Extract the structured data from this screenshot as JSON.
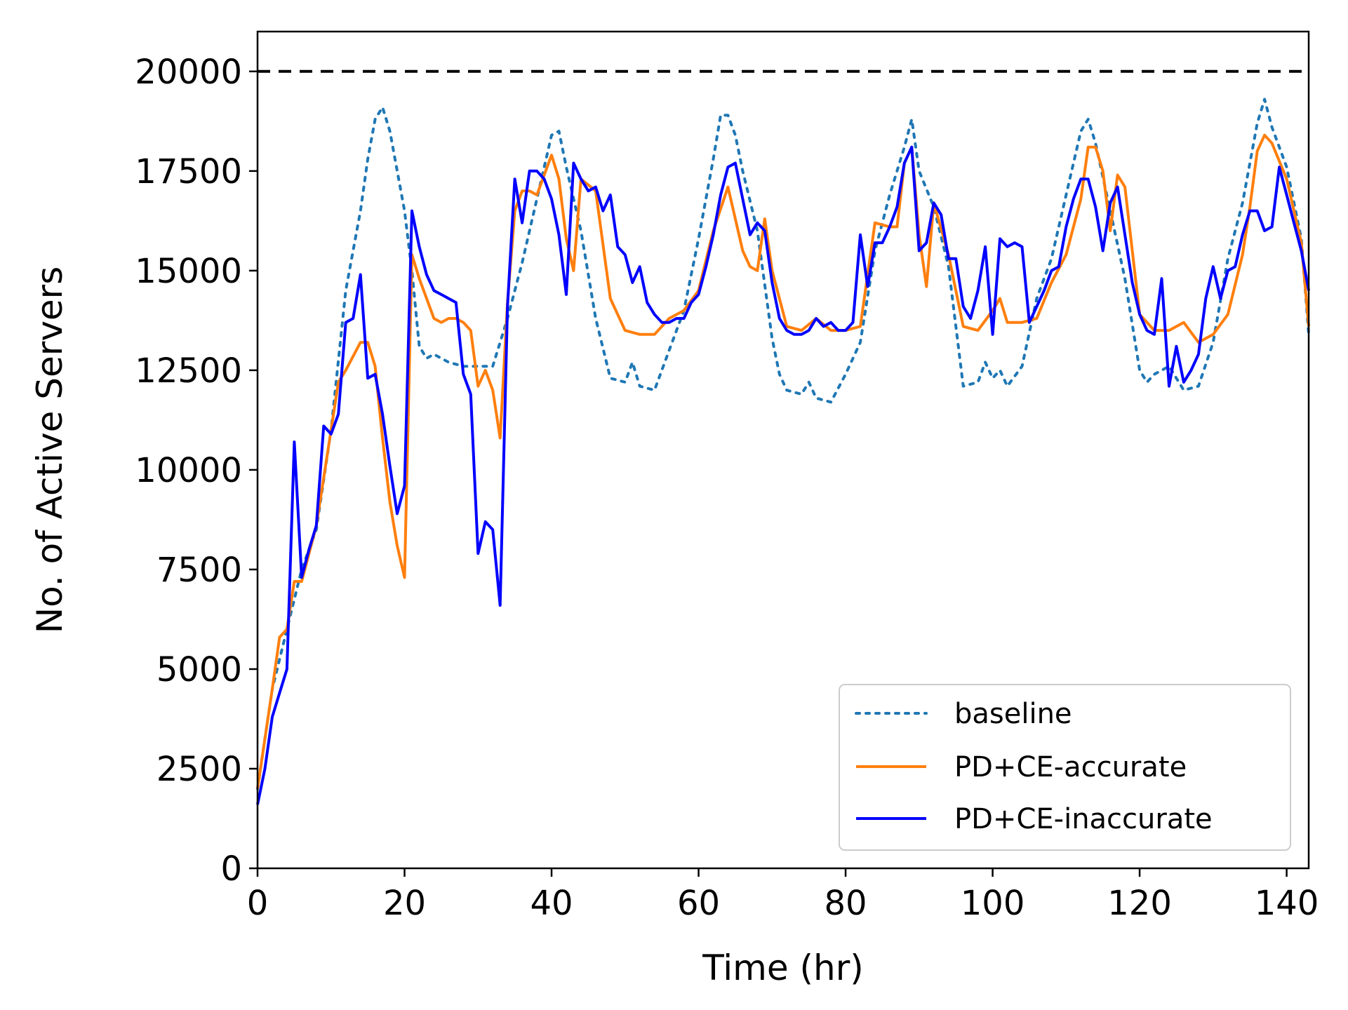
{
  "chart_data": {
    "type": "line",
    "title": "",
    "xlabel": "Time (hr)",
    "ylabel": "No. of Active Servers",
    "xlim": [
      0,
      143
    ],
    "ylim": [
      0,
      21000
    ],
    "xticks": [
      0,
      20,
      40,
      60,
      80,
      100,
      120,
      140
    ],
    "yticks": [
      0,
      2500,
      5000,
      7500,
      10000,
      12500,
      15000,
      17500,
      20000
    ],
    "grid": false,
    "legend_position": "lower-right",
    "reference_line": {
      "y": 20000,
      "style": "dashed",
      "color": "#000000"
    },
    "colors": {
      "baseline": "#1f77b4",
      "accurate": "#ff7f0e",
      "inaccurate": "#0000ff"
    },
    "series": [
      {
        "name": "baseline",
        "style": "dotted",
        "color": "#1f77b4",
        "x": [
          0,
          2,
          4,
          6,
          8,
          10,
          12,
          14,
          15,
          16,
          17,
          18,
          20,
          21,
          22,
          23,
          24,
          26,
          28,
          30,
          32,
          34,
          36,
          38,
          40,
          41,
          42,
          44,
          46,
          48,
          50,
          51,
          52,
          54,
          56,
          58,
          60,
          62,
          63,
          64,
          65,
          66,
          68,
          70,
          71,
          72,
          74,
          75,
          76,
          78,
          80,
          82,
          84,
          86,
          88,
          89,
          90,
          92,
          94,
          96,
          98,
          99,
          100,
          101,
          102,
          104,
          106,
          108,
          110,
          112,
          113,
          114,
          116,
          118,
          120,
          121,
          122,
          124,
          126,
          128,
          130,
          132,
          134,
          136,
          137,
          138,
          140,
          142,
          143
        ],
        "y": [
          2000,
          4500,
          6000,
          7500,
          8500,
          11000,
          14500,
          16500,
          17800,
          18800,
          19100,
          18500,
          16500,
          15000,
          13100,
          12800,
          12900,
          12700,
          12600,
          12600,
          12600,
          13800,
          15200,
          16800,
          18400,
          18500,
          17600,
          16000,
          13800,
          12300,
          12200,
          12700,
          12100,
          12000,
          13000,
          14000,
          15800,
          17800,
          18900,
          18900,
          18400,
          17500,
          16000,
          13300,
          12400,
          12000,
          11900,
          12200,
          11800,
          11700,
          12400,
          13200,
          15500,
          16900,
          18100,
          18800,
          17500,
          16600,
          15100,
          12100,
          12200,
          12700,
          12300,
          12500,
          12100,
          12600,
          14300,
          15300,
          16900,
          18500,
          18800,
          18200,
          16500,
          14800,
          12500,
          12200,
          12400,
          12600,
          12000,
          12100,
          13200,
          15300,
          16700,
          18700,
          19300,
          18600,
          17600,
          15800,
          13400
        ]
      },
      {
        "name": "PD+CE-accurate",
        "style": "solid",
        "color": "#ff7f0e",
        "x": [
          0,
          2,
          3,
          4,
          5,
          6,
          8,
          10,
          11,
          12,
          14,
          15,
          16,
          17,
          18,
          19,
          20,
          21,
          22,
          24,
          25,
          26,
          27,
          28,
          29,
          30,
          31,
          32,
          33,
          34,
          35,
          36,
          37,
          38,
          40,
          41,
          42,
          43,
          44,
          46,
          48,
          50,
          52,
          54,
          56,
          58,
          60,
          62,
          64,
          66,
          67,
          68,
          69,
          70,
          72,
          74,
          76,
          78,
          80,
          82,
          84,
          86,
          87,
          88,
          89,
          90,
          91,
          92,
          94,
          96,
          98,
          100,
          101,
          102,
          104,
          106,
          108,
          110,
          112,
          113,
          114,
          115,
          116,
          117,
          118,
          120,
          122,
          124,
          126,
          128,
          130,
          132,
          134,
          135,
          136,
          137,
          138,
          140,
          142,
          143
        ],
        "y": [
          2000,
          4500,
          5800,
          6000,
          7200,
          7200,
          8600,
          11000,
          12200,
          12500,
          13200,
          13200,
          12600,
          10800,
          9200,
          8100,
          7300,
          15400,
          14800,
          13800,
          13700,
          13800,
          13800,
          13700,
          13500,
          12100,
          12500,
          12000,
          10800,
          14200,
          16500,
          17000,
          17000,
          16900,
          17900,
          17300,
          15800,
          15000,
          17300,
          17000,
          14300,
          13500,
          13400,
          13400,
          13800,
          14000,
          14500,
          16000,
          17100,
          15500,
          15100,
          15000,
          16300,
          15000,
          13600,
          13500,
          13800,
          13500,
          13500,
          13600,
          16200,
          16100,
          16100,
          17700,
          18100,
          15900,
          14600,
          16700,
          15400,
          13600,
          13500,
          14000,
          14300,
          13700,
          13700,
          13800,
          14700,
          15400,
          16800,
          18100,
          18100,
          17500,
          16000,
          17400,
          17100,
          13900,
          13500,
          13500,
          13700,
          13200,
          13400,
          13900,
          15400,
          16600,
          18000,
          18400,
          18200,
          17300,
          15700,
          13600
        ]
      },
      {
        "name": "PD+CE-inaccurate",
        "style": "solid",
        "color": "#0000ff",
        "x": [
          0,
          1,
          2,
          3,
          4,
          5,
          6,
          7,
          8,
          9,
          10,
          11,
          12,
          13,
          14,
          15,
          16,
          17,
          18,
          19,
          20,
          21,
          22,
          23,
          24,
          25,
          26,
          27,
          28,
          29,
          30,
          31,
          32,
          33,
          34,
          35,
          36,
          37,
          38,
          39,
          40,
          41,
          42,
          43,
          44,
          45,
          46,
          47,
          48,
          49,
          50,
          51,
          52,
          53,
          54,
          55,
          56,
          57,
          58,
          59,
          60,
          61,
          62,
          63,
          64,
          65,
          66,
          67,
          68,
          69,
          70,
          71,
          72,
          73,
          74,
          75,
          76,
          77,
          78,
          79,
          80,
          81,
          82,
          83,
          84,
          85,
          86,
          87,
          88,
          89,
          90,
          91,
          92,
          93,
          94,
          95,
          96,
          97,
          98,
          99,
          100,
          101,
          102,
          103,
          104,
          105,
          106,
          107,
          108,
          109,
          110,
          111,
          112,
          113,
          114,
          115,
          116,
          117,
          118,
          119,
          120,
          121,
          122,
          123,
          124,
          125,
          126,
          127,
          128,
          129,
          130,
          131,
          132,
          133,
          134,
          135,
          136,
          137,
          138,
          139,
          140,
          141,
          142,
          143
        ],
        "y": [
          1600,
          2500,
          3800,
          4400,
          5000,
          10700,
          7300,
          8000,
          8600,
          11100,
          10900,
          11400,
          13700,
          13800,
          14900,
          12300,
          12400,
          11400,
          10100,
          8900,
          9600,
          16500,
          15600,
          14900,
          14500,
          14400,
          14300,
          14200,
          12400,
          11900,
          7900,
          8700,
          8500,
          6600,
          14100,
          17300,
          16200,
          17500,
          17500,
          17300,
          16800,
          15900,
          14400,
          17700,
          17300,
          17000,
          17100,
          16500,
          16900,
          15600,
          15400,
          14700,
          15100,
          14200,
          13900,
          13700,
          13700,
          13800,
          13800,
          14200,
          14400,
          15100,
          15900,
          16900,
          17600,
          17700,
          16800,
          15900,
          16200,
          16000,
          14700,
          13800,
          13500,
          13400,
          13400,
          13500,
          13800,
          13600,
          13700,
          13500,
          13500,
          13700,
          15900,
          14600,
          15700,
          15700,
          16100,
          16600,
          17700,
          18100,
          15500,
          15700,
          16700,
          16400,
          15300,
          15300,
          14100,
          13800,
          14500,
          15600,
          13400,
          15800,
          15600,
          15700,
          15600,
          13700,
          14100,
          14500,
          15000,
          15100,
          16100,
          16800,
          17300,
          17300,
          16600,
          15500,
          16700,
          17100,
          15900,
          14700,
          13900,
          13500,
          13400,
          14800,
          12100,
          13100,
          12200,
          12500,
          12900,
          14300,
          15100,
          14300,
          15000,
          15100,
          15900,
          16500,
          16500,
          16000,
          16100,
          17600,
          16900,
          16200,
          15500,
          14500
        ]
      }
    ]
  }
}
